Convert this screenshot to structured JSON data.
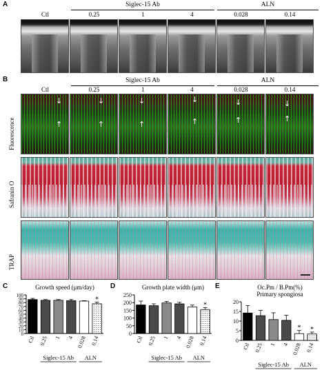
{
  "panels": {
    "a": "A",
    "b": "B",
    "c": "C",
    "d": "D",
    "e": "E"
  },
  "groups": {
    "ab": "Siglec-15 Ab",
    "aln": "ALN"
  },
  "columns": [
    "Ctl",
    "0.25",
    "1",
    "4",
    "0.028",
    "0.14"
  ],
  "row_labels": {
    "fluorescence": "Fluorescence",
    "safranin": "Safranin O",
    "trap": "TRAP"
  },
  "colors": {
    "black_bar": "#000000",
    "dark_gray_bar": "#4a4a4a",
    "gray_bar": "#8a8a8a",
    "white_bar": "#ffffff",
    "dotted_bar": "#dddddd"
  },
  "chart_data": [
    {
      "type": "bar",
      "title": "Growth speed (μm/day)",
      "categories": [
        "Ctl",
        "0.25",
        "1",
        "4",
        "0.028",
        "0.14"
      ],
      "values": [
        88,
        86,
        86,
        85,
        84,
        77
      ],
      "errors": [
        3,
        2,
        2,
        3,
        1,
        4
      ],
      "significance": [
        "",
        "",
        "",
        "",
        "",
        "*"
      ],
      "ylim": [
        0,
        100
      ],
      "yticks": [
        0,
        10,
        20,
        30,
        40,
        50,
        60,
        70,
        80,
        90,
        100
      ],
      "group_labels": [
        "Siglec-15 Ab",
        "ALN"
      ]
    },
    {
      "type": "bar",
      "title": "Growth plate width (μm)",
      "categories": [
        "Ctl",
        "0.25",
        "1",
        "4",
        "0.028",
        "0.14"
      ],
      "values": [
        185,
        180,
        198,
        192,
        172,
        155
      ],
      "errors": [
        25,
        12,
        10,
        10,
        12,
        12
      ],
      "significance": [
        "",
        "",
        "",
        "",
        "",
        "*"
      ],
      "ylim": [
        0,
        250
      ],
      "yticks": [
        0,
        50,
        100,
        150,
        200,
        250
      ],
      "group_labels": [
        "Siglec-15 Ab",
        "ALN"
      ]
    },
    {
      "type": "bar",
      "title": "Oc.Pm / B.Pm(%)",
      "subtitle": "Primary spongiosa",
      "categories": [
        "Ctl",
        "0.25",
        "1",
        "4",
        "0.028",
        "0.14"
      ],
      "values": [
        14.2,
        12.8,
        10.8,
        10.4,
        3.5,
        3.3
      ],
      "errors": [
        3.8,
        2.8,
        3.5,
        2.6,
        1.6,
        1.0
      ],
      "significance": [
        "",
        "",
        "",
        "",
        "*",
        "*"
      ],
      "ylim": [
        0,
        20
      ],
      "yticks": [
        0,
        5,
        10,
        15,
        20
      ],
      "group_labels": [
        "Siglec-15 Ab",
        "ALN"
      ]
    }
  ]
}
